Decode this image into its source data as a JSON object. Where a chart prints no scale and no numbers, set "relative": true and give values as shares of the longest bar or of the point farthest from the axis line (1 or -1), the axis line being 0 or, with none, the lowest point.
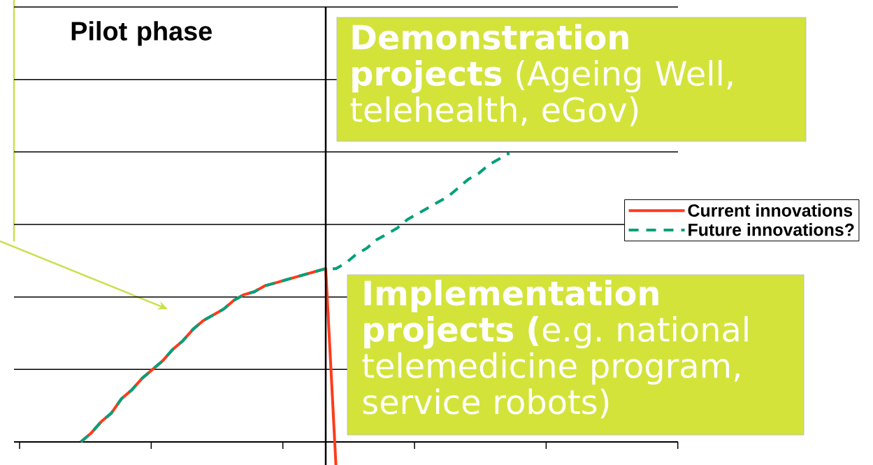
{
  "chart_data": {
    "type": "line",
    "relative": true,
    "categories": [
      null,
      null,
      null,
      null,
      null,
      null,
      null,
      null,
      null,
      null,
      null,
      null,
      null,
      null,
      null,
      null,
      null,
      null,
      null,
      null,
      null,
      null,
      null,
      null,
      null,
      null,
      null,
      null,
      null,
      null,
      null,
      null,
      null,
      null,
      null,
      null,
      null,
      null,
      null,
      null,
      null,
      null,
      null,
      null,
      null,
      null,
      null,
      null,
      null,
      null,
      null,
      null,
      null,
      null,
      null,
      null,
      null,
      null,
      null,
      null,
      null,
      null,
      null,
      null,
      null
    ],
    "series": [
      {
        "name": "Current innovations",
        "color": "#ff3a1a",
        "line_style": "solid",
        "values": [
          null,
          null,
          null,
          null,
          null,
          null,
          0,
          0.03,
          0.07,
          0.1,
          0.15,
          0.18,
          0.22,
          0.25,
          0.28,
          0.32,
          0.35,
          0.39,
          0.42,
          0.44,
          0.46,
          0.49,
          0.51,
          0.52,
          0.54,
          0.55,
          0.56,
          0.57,
          0.58,
          0.59,
          0.6,
          -0.08,
          null,
          null,
          null,
          null,
          null,
          null,
          null,
          null,
          null,
          null,
          null,
          null,
          null,
          null,
          null,
          null,
          null,
          null,
          null,
          null,
          null,
          null,
          null,
          null,
          null,
          null,
          null,
          null,
          null,
          null,
          null,
          null,
          null
        ]
      },
      {
        "name": "Future innovations?",
        "color": "#00a07a",
        "line_style": "dashed",
        "values": [
          null,
          null,
          null,
          null,
          null,
          null,
          0,
          0.03,
          0.07,
          0.1,
          0.15,
          0.18,
          0.22,
          0.25,
          0.28,
          0.32,
          0.35,
          0.39,
          0.42,
          0.44,
          0.46,
          0.49,
          0.51,
          0.52,
          0.54,
          0.55,
          0.56,
          0.57,
          0.58,
          0.59,
          0.6,
          0.6,
          0.62,
          0.65,
          0.67,
          0.7,
          0.72,
          0.74,
          0.77,
          0.79,
          0.81,
          0.83,
          0.85,
          0.88,
          0.91,
          0.93,
          0.96,
          0.98,
          1.0,
          null,
          null,
          null,
          null,
          null,
          null,
          null,
          null,
          null,
          null,
          null,
          null,
          null,
          null,
          null,
          null
        ]
      }
    ],
    "grid": "y",
    "legend": "right",
    "marker": "none",
    "annotations": [
      "Pilot phase",
      "**Demonstration projects** (Ageing Well, telehealth, eGov)",
      "**Implementation projects (**e.g. national telemedicine program, service robots)"
    ]
  }
}
